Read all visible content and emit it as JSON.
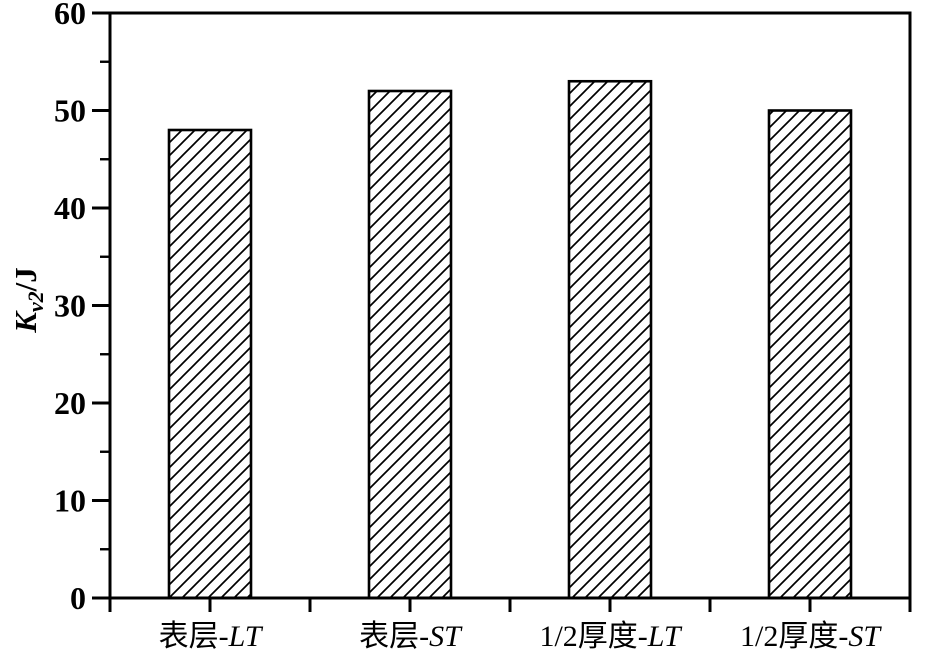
{
  "figure": {
    "background_color": "#ffffff",
    "line_color": "#000000",
    "title": ""
  },
  "chart_data": {
    "type": "bar",
    "title": "",
    "categories": [
      "表层-LT",
      "表层-ST",
      "1/2厚度-LT",
      "1/2厚度-ST"
    ],
    "category_parts": [
      {
        "prefix": "表层-",
        "italic": "LT"
      },
      {
        "prefix": "表层-",
        "italic": "ST"
      },
      {
        "prefix": "1/2厚度-",
        "italic": "LT"
      },
      {
        "prefix": "1/2厚度-",
        "italic": "ST"
      }
    ],
    "values": [
      48,
      52,
      53,
      50
    ],
    "xlabel": "",
    "ylabel": "Kv2/J",
    "ylabel_parts": {
      "symbol": "K",
      "subscript": "v2",
      "unit": "/J"
    },
    "ylim": [
      0,
      60
    ],
    "yticks": [
      0,
      10,
      20,
      30,
      40,
      50,
      60
    ],
    "ytick_step": 10,
    "ytick_minor_step": 5,
    "grid": false,
    "legend": "none",
    "bar_style": {
      "fill_pattern": "diagonal-hatch",
      "fill_background": "#ffffff",
      "edge_color": "#000000",
      "hatch_color": "#000000"
    },
    "axes_box": true,
    "tick_direction": "out"
  }
}
